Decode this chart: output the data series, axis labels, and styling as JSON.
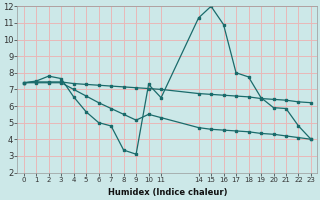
{
  "bg_color": "#cce8e8",
  "grid_color": "#e8b8b8",
  "line_color": "#1a6b6b",
  "xlabel": "Humidex (Indice chaleur)",
  "xlim": [
    -0.5,
    23.5
  ],
  "ylim": [
    2,
    12
  ],
  "xtick_positions": [
    0,
    1,
    2,
    3,
    4,
    5,
    6,
    7,
    8,
    9,
    10,
    11,
    14,
    15,
    16,
    17,
    18,
    19,
    20,
    21,
    22,
    23
  ],
  "xtick_labels": [
    "0",
    "1",
    "2",
    "3",
    "4",
    "5",
    "6",
    "7",
    "8",
    "9",
    "10",
    "11",
    "14",
    "15",
    "16",
    "17",
    "18",
    "19",
    "20",
    "21",
    "22",
    "23"
  ],
  "yticks": [
    2,
    3,
    4,
    5,
    6,
    7,
    8,
    9,
    10,
    11,
    12
  ],
  "line1_x": [
    0,
    1,
    2,
    3,
    4,
    5,
    6,
    7,
    8,
    9,
    10,
    11,
    14,
    15,
    16,
    17,
    18,
    19,
    20,
    21,
    22,
    23
  ],
  "line1_y": [
    7.4,
    7.5,
    7.8,
    7.65,
    6.55,
    5.65,
    5.0,
    4.8,
    3.35,
    3.1,
    7.3,
    6.5,
    11.3,
    12.0,
    10.9,
    8.0,
    7.75,
    6.5,
    5.9,
    5.85,
    4.8,
    4.0
  ],
  "line2_x": [
    0,
    1,
    2,
    3,
    4,
    5,
    6,
    7,
    8,
    9,
    10,
    11,
    14,
    15,
    16,
    17,
    18,
    19,
    20,
    21,
    22,
    23
  ],
  "line2_y": [
    7.4,
    7.45,
    7.45,
    7.45,
    7.35,
    7.3,
    7.25,
    7.2,
    7.15,
    7.1,
    7.05,
    7.0,
    6.75,
    6.7,
    6.65,
    6.6,
    6.55,
    6.45,
    6.4,
    6.35,
    6.25,
    6.2
  ],
  "line3_x": [
    0,
    1,
    2,
    3,
    4,
    5,
    6,
    7,
    8,
    9,
    10,
    11,
    14,
    15,
    16,
    17,
    18,
    19,
    20,
    21,
    22,
    23
  ],
  "line3_y": [
    7.4,
    7.4,
    7.4,
    7.4,
    7.0,
    6.6,
    6.2,
    5.85,
    5.5,
    5.15,
    5.5,
    5.3,
    4.7,
    4.6,
    4.55,
    4.5,
    4.45,
    4.35,
    4.3,
    4.2,
    4.1,
    4.0
  ]
}
